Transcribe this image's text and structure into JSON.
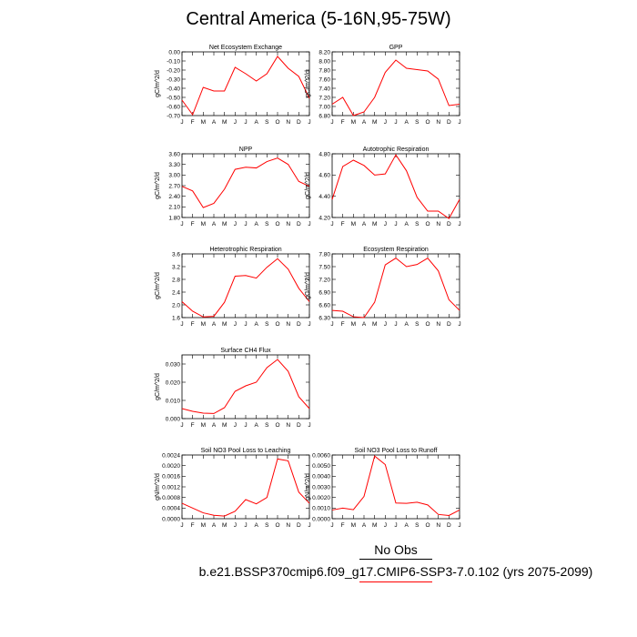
{
  "title": "Central America (5-16N,95-75W)",
  "legend": {
    "obs_label": "No Obs",
    "case_label": "b.e21.BSSP370cmip6.f09_g17.CMIP6-SSP3-7.0.102 (yrs 2075-2099)",
    "obs_line_color": "#000000",
    "case_line_color": "#ff0000"
  },
  "chart_data": [
    {
      "type": "line",
      "title": "Net Ecosystem Exchange",
      "ylabel": "gC/m^2/d",
      "categories": [
        "J",
        "F",
        "M",
        "A",
        "M",
        "J",
        "J",
        "A",
        "S",
        "O",
        "N",
        "D",
        "J"
      ],
      "ylim": [
        -0.7,
        0.0
      ],
      "yticks": [
        "0.00",
        "-0.10",
        "-0.20",
        "-0.30",
        "-0.40",
        "-0.50",
        "-0.60",
        "-0.70"
      ],
      "ytick_values": [
        0.0,
        -0.1,
        -0.2,
        -0.3,
        -0.4,
        -0.5,
        -0.6,
        -0.7
      ],
      "values": [
        -0.53,
        -0.69,
        -0.39,
        -0.43,
        -0.43,
        -0.17,
        -0.24,
        -0.32,
        -0.24,
        -0.05,
        -0.18,
        -0.27,
        -0.51
      ],
      "color": "#ff0000"
    },
    {
      "type": "line",
      "title": "GPP",
      "ylabel": "gC/m^2/d",
      "categories": [
        "J",
        "F",
        "M",
        "A",
        "M",
        "J",
        "J",
        "A",
        "S",
        "O",
        "N",
        "D",
        "J"
      ],
      "ylim": [
        6.8,
        8.2
      ],
      "yticks": [
        "8.20",
        "8.00",
        "7.80",
        "7.60",
        "7.40",
        "7.20",
        "7.00",
        "6.80"
      ],
      "ytick_values": [
        8.2,
        8.0,
        7.8,
        7.6,
        7.4,
        7.2,
        7.0,
        6.8
      ],
      "values": [
        7.05,
        7.2,
        6.8,
        6.88,
        7.2,
        7.75,
        8.02,
        7.84,
        7.81,
        7.78,
        7.6,
        7.02,
        7.05
      ],
      "color": "#ff0000"
    },
    {
      "type": "line",
      "title": "NPP",
      "ylabel": "gC/m^2/d",
      "categories": [
        "J",
        "F",
        "M",
        "A",
        "M",
        "J",
        "J",
        "A",
        "S",
        "O",
        "N",
        "D",
        "J"
      ],
      "ylim": [
        1.8,
        3.6
      ],
      "yticks": [
        "3.60",
        "3.30",
        "3.00",
        "2.70",
        "2.40",
        "2.10",
        "1.80"
      ],
      "ytick_values": [
        3.6,
        3.3,
        3.0,
        2.7,
        2.4,
        2.1,
        1.8
      ],
      "values": [
        2.68,
        2.55,
        2.08,
        2.2,
        2.6,
        3.16,
        3.22,
        3.2,
        3.38,
        3.48,
        3.3,
        2.82,
        2.68
      ],
      "color": "#ff0000"
    },
    {
      "type": "line",
      "title": "Autotrophic Respiration",
      "ylabel": "gC/m^2/d",
      "categories": [
        "J",
        "F",
        "M",
        "A",
        "M",
        "J",
        "J",
        "A",
        "S",
        "O",
        "N",
        "D",
        "J"
      ],
      "ylim": [
        4.2,
        4.8
      ],
      "yticks": [
        "4.80",
        "4.60",
        "4.40",
        "4.20"
      ],
      "ytick_values": [
        4.8,
        4.6,
        4.4,
        4.2
      ],
      "values": [
        4.37,
        4.68,
        4.74,
        4.69,
        4.6,
        4.61,
        4.79,
        4.64,
        4.39,
        4.26,
        4.26,
        4.19,
        4.37
      ],
      "color": "#ff0000"
    },
    {
      "type": "line",
      "title": "Heterotrophic Respiration",
      "ylabel": "gC/m^2/d",
      "categories": [
        "J",
        "F",
        "M",
        "A",
        "M",
        "J",
        "J",
        "A",
        "S",
        "O",
        "N",
        "D",
        "J"
      ],
      "ylim": [
        1.6,
        3.6
      ],
      "yticks": [
        "3.6",
        "3.2",
        "2.8",
        "2.4",
        "2.0",
        "1.6"
      ],
      "ytick_values": [
        3.6,
        3.2,
        2.8,
        2.4,
        2.0,
        1.6
      ],
      "values": [
        2.1,
        1.8,
        1.62,
        1.64,
        2.08,
        2.9,
        2.92,
        2.84,
        3.18,
        3.45,
        3.12,
        2.52,
        2.1
      ],
      "color": "#ff0000"
    },
    {
      "type": "line",
      "title": "Ecosystem Respiration",
      "ylabel": "gC/m^2/d",
      "categories": [
        "J",
        "F",
        "M",
        "A",
        "M",
        "J",
        "J",
        "A",
        "S",
        "O",
        "N",
        "D",
        "J"
      ],
      "ylim": [
        6.3,
        7.8
      ],
      "yticks": [
        "7.80",
        "7.50",
        "7.20",
        "6.90",
        "6.60",
        "6.30"
      ],
      "ytick_values": [
        7.8,
        7.5,
        7.2,
        6.9,
        6.6,
        6.3
      ],
      "values": [
        6.47,
        6.45,
        6.32,
        6.3,
        6.66,
        7.54,
        7.7,
        7.5,
        7.55,
        7.7,
        7.4,
        6.72,
        6.47
      ],
      "color": "#ff0000"
    },
    {
      "type": "line",
      "title": "Surface CH4 Flux",
      "ylabel": "gC/m^2/d",
      "categories": [
        "J",
        "F",
        "M",
        "A",
        "M",
        "J",
        "J",
        "A",
        "S",
        "O",
        "N",
        "D",
        "J"
      ],
      "ylim": [
        0.0,
        0.035
      ],
      "yticks": [
        "0.030",
        "0.020",
        "0.010",
        "0.000"
      ],
      "ytick_values": [
        0.03,
        0.02,
        0.01,
        0.0
      ],
      "values": [
        0.0055,
        0.004,
        0.003,
        0.0028,
        0.006,
        0.015,
        0.018,
        0.02,
        0.028,
        0.0325,
        0.026,
        0.012,
        0.0055
      ],
      "color": "#ff0000"
    },
    {
      "type": "line",
      "title": "Soil NO3 Pool Loss to Leaching",
      "ylabel": "gN/m^2/d",
      "categories": [
        "J",
        "F",
        "M",
        "A",
        "M",
        "J",
        "J",
        "A",
        "S",
        "O",
        "N",
        "D",
        "J"
      ],
      "ylim": [
        0.0,
        0.0024
      ],
      "yticks": [
        "0.0024",
        "0.0020",
        "0.0016",
        "0.0012",
        "0.0008",
        "0.0004",
        "0.0000"
      ],
      "ytick_values": [
        0.0024,
        0.002,
        0.0016,
        0.0012,
        0.0008,
        0.0004,
        0.0
      ],
      "values": [
        0.00058,
        0.0004,
        0.00022,
        0.00013,
        0.0001,
        0.00028,
        0.00072,
        0.00056,
        0.0008,
        0.00225,
        0.00218,
        0.001,
        0.00058
      ],
      "color": "#ff0000"
    },
    {
      "type": "line",
      "title": "Soil NO3 Pool Loss to Runoff",
      "ylabel": "gN/m^2/d",
      "categories": [
        "J",
        "F",
        "M",
        "A",
        "M",
        "J",
        "J",
        "A",
        "S",
        "O",
        "N",
        "D",
        "J"
      ],
      "ylim": [
        0.0,
        0.006
      ],
      "yticks": [
        "0.0060",
        "0.0050",
        "0.0040",
        "0.0030",
        "0.0020",
        "0.0010",
        "0.0000"
      ],
      "ytick_values": [
        0.006,
        0.005,
        0.004,
        0.003,
        0.002,
        0.001,
        0.0
      ],
      "values": [
        0.00082,
        0.001,
        0.00085,
        0.0021,
        0.0059,
        0.0051,
        0.00148,
        0.00145,
        0.00155,
        0.0013,
        0.0004,
        0.0003,
        0.00082
      ],
      "color": "#ff0000"
    }
  ]
}
